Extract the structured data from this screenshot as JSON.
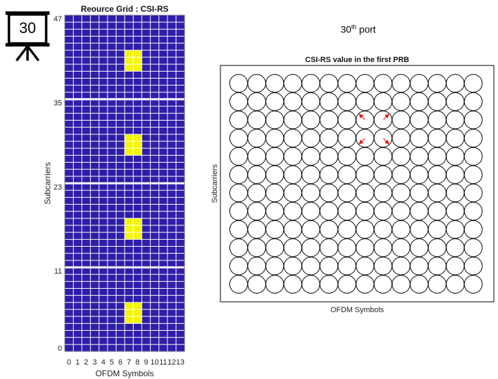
{
  "port_label": {
    "number": "30",
    "superscript": "th",
    "text": "port"
  },
  "presenter_icon": {
    "name": "presentation-board-icon",
    "number": "30"
  },
  "chart_data": [
    {
      "type": "heatmap",
      "title": "Reource Grid : CSI-RS",
      "xlabel": "OFDM Symbols",
      "ylabel": "Subcarriers",
      "x_ticks": [
        "0",
        "1",
        "2",
        "3",
        "4",
        "5",
        "6",
        "7",
        "8",
        "9",
        "10",
        "11",
        "12",
        "13"
      ],
      "y_ticks": [
        "0",
        "11",
        "23",
        "35",
        "47"
      ],
      "n_symbols": 14,
      "n_subcarriers": 48,
      "colors": {
        "background": "#2e1ea8",
        "csi_rs": "#f5f50a",
        "grid": "#ffffff"
      },
      "csi_rs_symbols": [
        7,
        8
      ],
      "csi_rs_subcarriers": [
        4,
        5,
        6,
        16,
        17,
        18,
        28,
        29,
        30,
        40,
        41,
        42
      ]
    },
    {
      "type": "scatter",
      "title": "CSI-RS value in the first PRB",
      "xlabel": "OFDM Symbols",
      "ylabel": "Subcarriers",
      "grid_cols": 14,
      "grid_rows": 12,
      "marker": "circle",
      "arrow_color": "#e81010",
      "arrows": [
        {
          "col": 7,
          "row": 2,
          "dir": "up-left"
        },
        {
          "col": 8,
          "row": 2,
          "dir": "up-right"
        },
        {
          "col": 7,
          "row": 3,
          "dir": "down-left"
        },
        {
          "col": 8,
          "row": 3,
          "dir": "down-right"
        }
      ]
    }
  ]
}
